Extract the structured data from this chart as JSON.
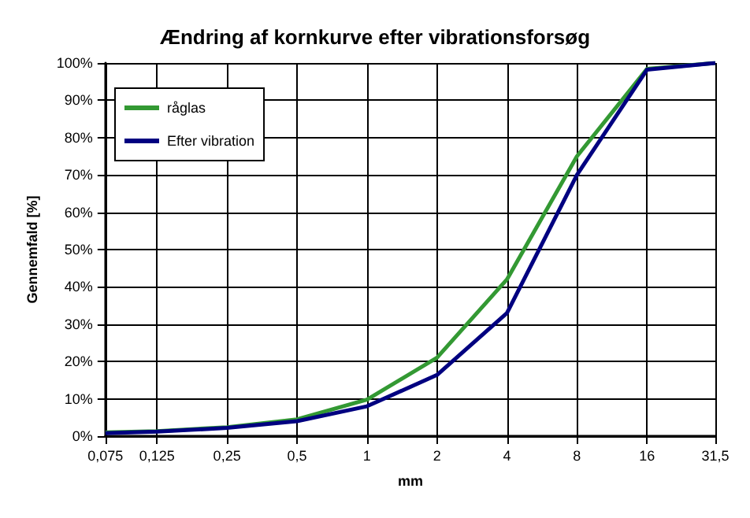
{
  "chart_data": {
    "type": "line",
    "title": "Ændring af kornkurve efter vibrationsforsøg",
    "xlabel": "mm",
    "ylabel": "Gennemfald [%]",
    "x": [
      0.075,
      0.125,
      0.25,
      0.5,
      1,
      2,
      4,
      8,
      16,
      31.5
    ],
    "series": [
      {
        "name": "råglas",
        "color": "#339933",
        "values": [
          1,
          1.3,
          2.4,
          4.5,
          9.8,
          21,
          42,
          75,
          98.4,
          100
        ]
      },
      {
        "name": "Efter vibration",
        "color": "#000080",
        "values": [
          0.8,
          1.2,
          2.2,
          4,
          8,
          16.4,
          33,
          70,
          98.2,
          100
        ]
      }
    ],
    "log": "x",
    "xlim": [
      0.075,
      31.5
    ],
    "xticks": [
      {
        "value": 0.075,
        "label": "0,075"
      },
      {
        "value": 0.125,
        "label": "0,125"
      },
      {
        "value": 0.25,
        "label": "0,25"
      },
      {
        "value": 0.5,
        "label": "0,5"
      },
      1,
      2,
      4,
      8,
      16,
      {
        "value": 31.5,
        "label": "31,5"
      }
    ],
    "ylim": [
      0,
      100
    ],
    "yticks": [
      {
        "value": 0,
        "label": "0%"
      },
      {
        "value": 10,
        "label": "10%"
      },
      {
        "value": 20,
        "label": "20%"
      },
      {
        "value": 30,
        "label": "30%"
      },
      {
        "value": 40,
        "label": "40%"
      },
      {
        "value": 50,
        "label": "50%"
      },
      {
        "value": 60,
        "label": "60%"
      },
      {
        "value": 70,
        "label": "70%"
      },
      {
        "value": 80,
        "label": "80%"
      },
      {
        "value": 90,
        "label": "90%"
      },
      {
        "value": 100,
        "label": "100%"
      }
    ],
    "grid": true,
    "legend": "top left",
    "marker": "none",
    "line_style": "solid"
  }
}
